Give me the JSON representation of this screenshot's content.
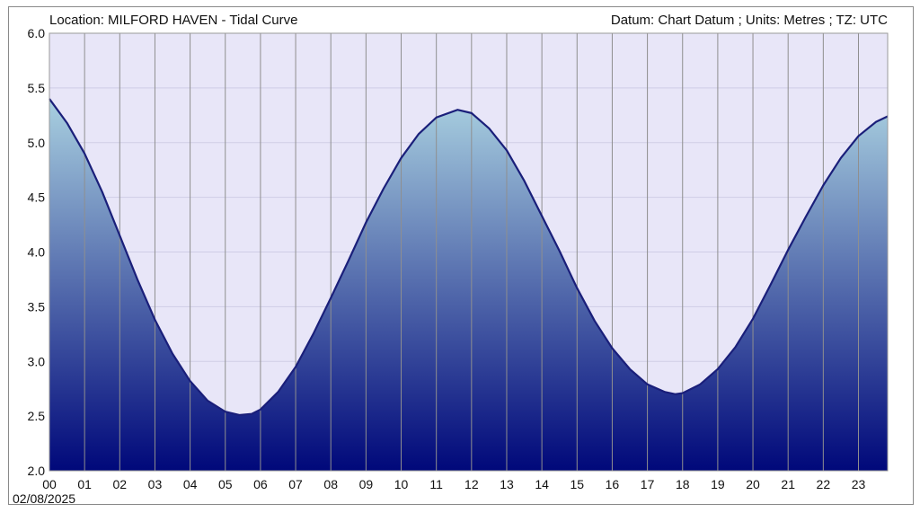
{
  "chart_data": {
    "type": "area",
    "title": "Location: MILFORD HAVEN - Tidal Curve",
    "subtitle": "Datum: Chart Datum ; Units: Metres ; TZ: UTC",
    "date_label": "02/08/2025",
    "xlabel": "",
    "ylabel": "",
    "xlim": [
      0,
      23.83
    ],
    "ylim": [
      2.0,
      6.0
    ],
    "grid": true,
    "x_ticks": [
      "00",
      "01",
      "02",
      "03",
      "04",
      "05",
      "06",
      "07",
      "08",
      "09",
      "10",
      "11",
      "12",
      "13",
      "14",
      "15",
      "16",
      "17",
      "18",
      "19",
      "20",
      "21",
      "22",
      "23"
    ],
    "y_ticks": [
      "2.0",
      "2.5",
      "3.0",
      "3.5",
      "4.0",
      "4.5",
      "5.0",
      "5.5",
      "6.0"
    ],
    "series": [
      {
        "x": [
          0.0,
          0.5,
          1.0,
          1.5,
          2.0,
          2.5,
          3.0,
          3.5,
          4.0,
          4.5,
          5.0,
          5.4,
          5.75,
          6.0,
          6.5,
          7.0,
          7.5,
          8.0,
          8.5,
          9.0,
          9.5,
          10.0,
          10.5,
          11.0,
          11.6,
          12.0,
          12.5,
          13.0,
          13.5,
          14.0,
          14.5,
          15.0,
          15.5,
          16.0,
          16.5,
          17.0,
          17.5,
          17.8,
          18.0,
          18.5,
          19.0,
          19.5,
          20.0,
          20.5,
          21.0,
          21.5,
          22.0,
          22.5,
          23.0,
          23.5,
          23.83
        ],
        "y": [
          5.4,
          5.18,
          4.9,
          4.55,
          4.15,
          3.75,
          3.38,
          3.07,
          2.82,
          2.64,
          2.54,
          2.51,
          2.52,
          2.56,
          2.72,
          2.95,
          3.25,
          3.58,
          3.92,
          4.27,
          4.58,
          4.86,
          5.08,
          5.23,
          5.3,
          5.27,
          5.13,
          4.93,
          4.65,
          4.33,
          4.01,
          3.67,
          3.37,
          3.12,
          2.93,
          2.79,
          2.72,
          2.7,
          2.71,
          2.79,
          2.93,
          3.13,
          3.39,
          3.7,
          4.02,
          4.32,
          4.61,
          4.86,
          5.06,
          5.19,
          5.24
        ]
      }
    ],
    "colors": {
      "plot_background": "#e8e6f8",
      "line": "#1a1f7a",
      "fill_top": "#a9d0e0",
      "fill_bottom": "#00087a",
      "grid_vertical": "#8f8f8f",
      "grid_horizontal": "#cfcde6"
    }
  }
}
